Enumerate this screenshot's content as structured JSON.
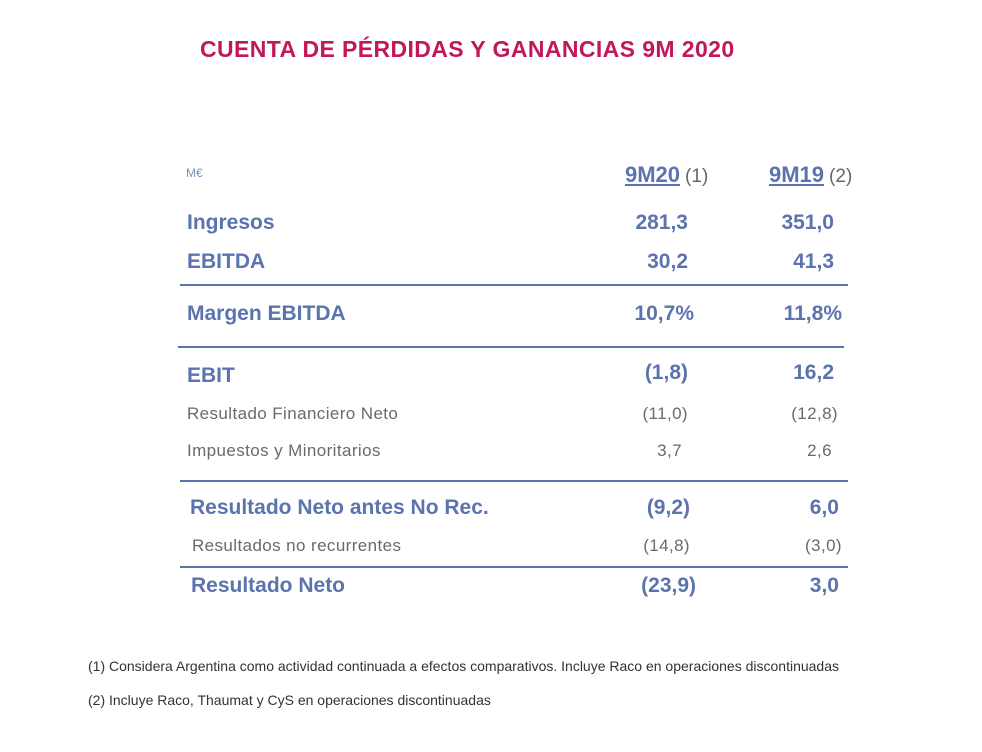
{
  "title": "CUENTA DE PÉRDIDAS Y GANANCIAS 9M 2020",
  "unit": "M€",
  "columns": [
    {
      "label": "9M20",
      "note": "(1)"
    },
    {
      "label": "9M19",
      "note": "(2)"
    }
  ],
  "rows": [
    {
      "label": "Ingresos",
      "v1": "281,3",
      "v2": "351,0"
    },
    {
      "label": "EBITDA",
      "v1": "30,2",
      "v2": "41,3"
    },
    {
      "label": "Margen EBITDA",
      "v1": "10,7%",
      "v2": "11,8%"
    },
    {
      "label": "EBIT",
      "v1": "(1,8)",
      "v2": "16,2"
    },
    {
      "label": "Resultado Financiero Neto",
      "v1": "(11,0)",
      "v2": "(12,8)"
    },
    {
      "label": "Impuestos y Minoritarios",
      "v1": "3,7",
      "v2": "2,6"
    },
    {
      "label": "Resultado Neto antes No Rec.",
      "v1": "(9,2)",
      "v2": "6,0"
    },
    {
      "label": "Resultados no recurrentes",
      "v1": "(14,8)",
      "v2": "(3,0)"
    },
    {
      "label": "Resultado Neto",
      "v1": "(23,9)",
      "v2": "3,0"
    }
  ],
  "footnotes": [
    "(1) Considera Argentina como actividad continuada a efectos comparativos. Incluye Raco en operaciones discontinuadas",
    "(2) Incluye Raco, Thaumat y CyS en operaciones discontinuadas"
  ]
}
